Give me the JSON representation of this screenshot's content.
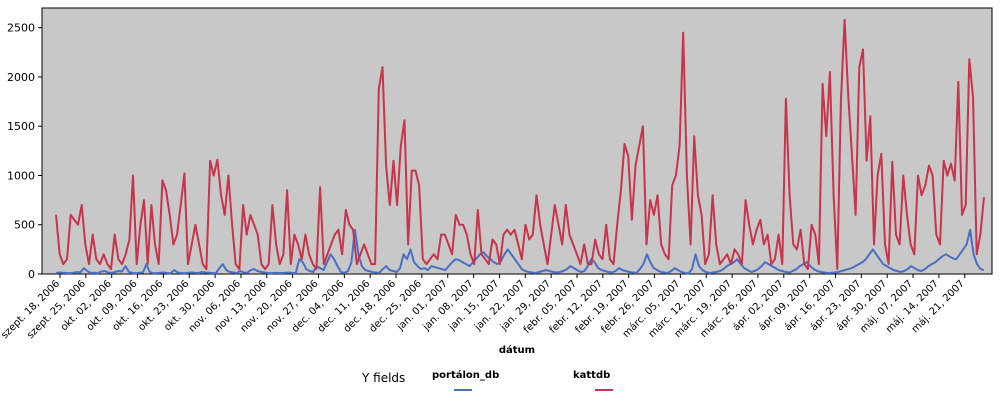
{
  "chart_data": {
    "type": "line",
    "xlabel": "dátum",
    "ylabel": "",
    "ylim": [
      0,
      2700
    ],
    "yticks": [
      0,
      500,
      1000,
      1500,
      2000,
      2500
    ],
    "grid": false,
    "legend_title": "Y fields",
    "legend_position": "bottom",
    "x_tick_labels": [
      "szept. 18, 2006",
      "szept. 25, 2006",
      "okt. 02, 2006",
      "okt. 09, 2006",
      "okt. 16, 2006",
      "okt. 23, 2006",
      "okt. 30, 2006",
      "nov. 06, 2006",
      "nov. 13, 2006",
      "nov. 20, 2006",
      "nov. 27, 2006",
      "dec. 04, 2006",
      "dec. 11, 2006",
      "dec. 18, 2006",
      "dec. 25, 2006",
      "jan. 01, 2007",
      "jan. 08, 2007",
      "jan. 15, 2007",
      "jan. 22, 2007",
      "jan. 29, 2007",
      "febr. 05, 2007",
      "febr. 12, 2007",
      "febr. 19, 2007",
      "febr. 26, 2007",
      "márc. 05, 2007",
      "márc. 12, 2007",
      "márc. 19, 2007",
      "márc. 26, 2007",
      "ápr. 02, 2007",
      "ápr. 09, 2007",
      "ápr. 16, 2007",
      "ápr. 23, 2007",
      "ápr. 30, 2007",
      "máj. 07, 2007",
      "máj. 14, 2007",
      "máj. 21, 2007"
    ],
    "series": [
      {
        "name": "portálon_db",
        "color": "#4a6fc4",
        "values": [
          10,
          15,
          12,
          10,
          8,
          12,
          20,
          15,
          60,
          30,
          10,
          12,
          8,
          25,
          30,
          15,
          10,
          20,
          30,
          25,
          80,
          20,
          10,
          8,
          12,
          15,
          100,
          20,
          8,
          10,
          12,
          15,
          10,
          8,
          40,
          15,
          10,
          8,
          12,
          15,
          12,
          10,
          20,
          15,
          12,
          10,
          8,
          60,
          100,
          40,
          20,
          15,
          10,
          30,
          15,
          12,
          40,
          50,
          30,
          20,
          15,
          10,
          8,
          12,
          10,
          10,
          12,
          15,
          10,
          10,
          150,
          120,
          50,
          30,
          20,
          80,
          60,
          40,
          120,
          200,
          150,
          80,
          20,
          10,
          30,
          120,
          450,
          200,
          80,
          40,
          30,
          20,
          15,
          10,
          50,
          80,
          40,
          30,
          20,
          60,
          200,
          150,
          250,
          120,
          80,
          50,
          60,
          40,
          80,
          70,
          60,
          50,
          40,
          80,
          120,
          150,
          140,
          120,
          100,
          80,
          120,
          160,
          200,
          220,
          180,
          150,
          120,
          100,
          130,
          200,
          250,
          200,
          150,
          100,
          50,
          30,
          20,
          15,
          10,
          20,
          30,
          40,
          30,
          20,
          15,
          20,
          30,
          50,
          80,
          60,
          40,
          20,
          30,
          80,
          150,
          120,
          60,
          40,
          30,
          20,
          15,
          30,
          60,
          40,
          30,
          20,
          15,
          10,
          50,
          100,
          200,
          120,
          60,
          40,
          20,
          15,
          10,
          30,
          60,
          40,
          20,
          10,
          8,
          50,
          200,
          80,
          40,
          20,
          10,
          15,
          20,
          30,
          50,
          80,
          100,
          120,
          150,
          100,
          60,
          40,
          20,
          30,
          50,
          80,
          120,
          100,
          80,
          60,
          40,
          30,
          20,
          15,
          30,
          50,
          80,
          100,
          120,
          80,
          50,
          30,
          20,
          15,
          10,
          12,
          15,
          20,
          30,
          40,
          50,
          60,
          80,
          100,
          120,
          150,
          200,
          250,
          200,
          150,
          100,
          80,
          60,
          40,
          30,
          20,
          30,
          50,
          80,
          60,
          40,
          30,
          50,
          80,
          100,
          120,
          150,
          180,
          200,
          180,
          160,
          150,
          200,
          250,
          300,
          450,
          200,
          100,
          50,
          40
        ]
      },
      {
        "name": "kattdb",
        "color": "#c8344a",
        "values": [
          600,
          200,
          100,
          150,
          600,
          550,
          500,
          700,
          300,
          100,
          400,
          150,
          100,
          200,
          100,
          50,
          400,
          150,
          100,
          200,
          350,
          1000,
          100,
          500,
          750,
          100,
          700,
          300,
          100,
          950,
          850,
          600,
          300,
          400,
          700,
          1020,
          100,
          300,
          500,
          300,
          100,
          50,
          1150,
          1000,
          1160,
          800,
          600,
          1000,
          500,
          100,
          50,
          700,
          400,
          600,
          500,
          400,
          100,
          50,
          100,
          700,
          300,
          100,
          200,
          850,
          100,
          400,
          300,
          150,
          400,
          200,
          100,
          50,
          880,
          100,
          200,
          300,
          400,
          450,
          200,
          650,
          500,
          450,
          100,
          200,
          300,
          200,
          100,
          100,
          1880,
          2100,
          1100,
          700,
          1150,
          700,
          1300,
          1560,
          300,
          1050,
          1050,
          900,
          150,
          100,
          150,
          200,
          150,
          400,
          400,
          300,
          200,
          600,
          500,
          500,
          400,
          200,
          100,
          650,
          200,
          150,
          100,
          350,
          300,
          100,
          400,
          450,
          400,
          450,
          300,
          150,
          500,
          350,
          400,
          800,
          500,
          300,
          100,
          400,
          700,
          500,
          300,
          700,
          400,
          300,
          200,
          100,
          300,
          100,
          100,
          350,
          200,
          150,
          500,
          150,
          100,
          500,
          850,
          1320,
          1200,
          550,
          1100,
          1300,
          1500,
          300,
          750,
          600,
          800,
          300,
          200,
          150,
          900,
          1000,
          1300,
          2450,
          1000,
          300,
          1400,
          800,
          600,
          100,
          200,
          800,
          300,
          100,
          150,
          200,
          100,
          250,
          200,
          100,
          750,
          500,
          300,
          450,
          550,
          300,
          400,
          100,
          150,
          400,
          100,
          1780,
          800,
          300,
          250,
          450,
          100,
          50,
          500,
          400,
          100,
          1930,
          1400,
          2050,
          800,
          50,
          1750,
          2580,
          1800,
          1200,
          600,
          2100,
          2280,
          1150,
          1600,
          300,
          1000,
          1220,
          300,
          100,
          1140,
          400,
          300,
          1000,
          600,
          300,
          200,
          1000,
          800,
          900,
          1100,
          1000,
          400,
          300,
          1150,
          1000,
          1120,
          950,
          1950,
          600,
          700,
          2180,
          1800,
          200,
          400,
          780
        ]
      }
    ]
  }
}
